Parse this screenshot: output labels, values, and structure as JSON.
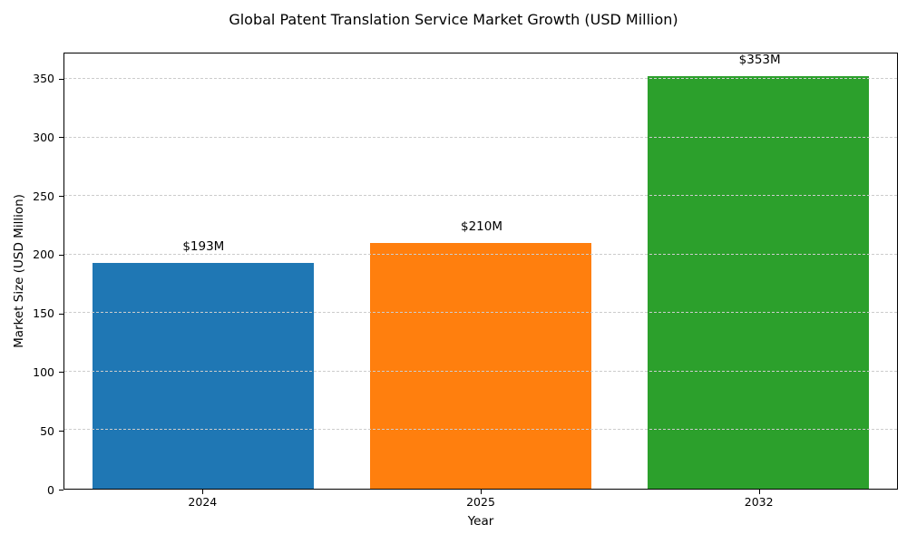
{
  "chart_data": {
    "type": "bar",
    "title": "Global Patent Translation Service Market Growth (USD Million)",
    "xlabel": "Year",
    "ylabel": "Market Size (USD Million)",
    "categories": [
      "2024",
      "2025",
      "2032"
    ],
    "values": [
      193,
      210,
      353
    ],
    "bar_labels": [
      "$193M",
      "$210M",
      "$353M"
    ],
    "bar_colors": [
      "#1f77b4",
      "#ff7f0e",
      "#2ca02c"
    ],
    "yticks": [
      0,
      50,
      100,
      150,
      200,
      250,
      300,
      350
    ],
    "ylim": [
      0,
      372
    ],
    "grid": {
      "axis": "y",
      "style": "dashed",
      "color": "#cccccc",
      "over_bars": true
    },
    "legend": "none",
    "background": "#ffffff",
    "spine_color": "#000000"
  }
}
